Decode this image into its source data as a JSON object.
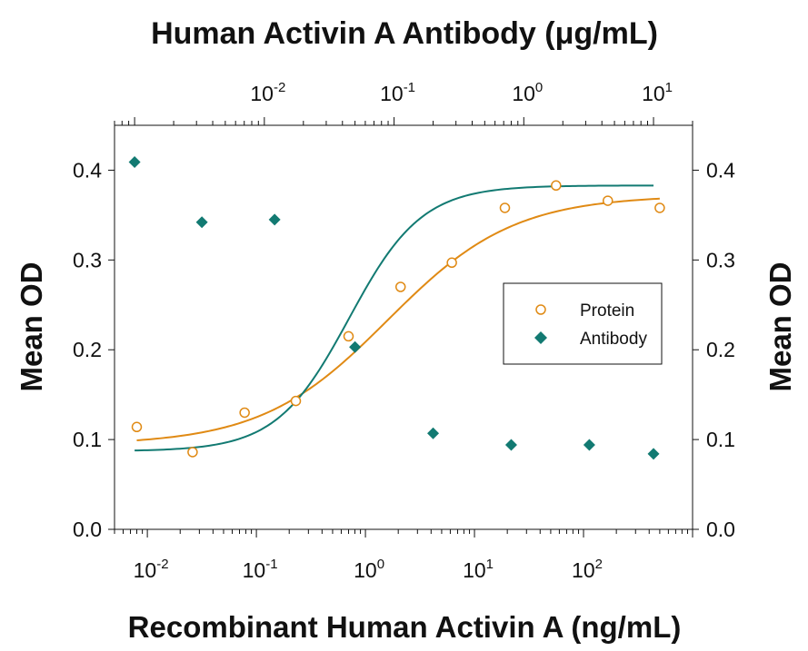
{
  "chart_data": {
    "type": "scatter",
    "title": "Human Activin A Antibody (μg/mL)",
    "xlabel": "Recombinant Human Activin A (ng/mL)",
    "ylabel": "Mean OD",
    "ylabel_right": "Mean OD",
    "x_scale": "log",
    "x_bottom_range": [
      0.005,
      1000
    ],
    "x_top_range": [
      0.0007,
      20
    ],
    "ylim": [
      0,
      0.45
    ],
    "y_ticks": [
      0.0,
      0.1,
      0.2,
      0.3,
      0.4
    ],
    "y_tick_labels": [
      "0.0",
      "0.1",
      "0.2",
      "0.3",
      "0.4"
    ],
    "x_bottom_ticks": [
      {
        "base": "10",
        "exp": "-2",
        "value": 0.01
      },
      {
        "base": "10",
        "exp": "-1",
        "value": 0.1
      },
      {
        "base": "10",
        "exp": "0",
        "value": 1
      },
      {
        "base": "10",
        "exp": "1",
        "value": 10
      },
      {
        "base": "10",
        "exp": "2",
        "value": 100
      }
    ],
    "x_top_ticks": [
      {
        "base": "10",
        "exp": "-2",
        "value": 0.01
      },
      {
        "base": "10",
        "exp": "-1",
        "value": 0.1
      },
      {
        "base": "10",
        "exp": "0",
        "value": 1
      },
      {
        "base": "10",
        "exp": "1",
        "value": 10
      }
    ],
    "legend_position": "right",
    "grid": false,
    "series": [
      {
        "name": "Protein",
        "axis": "bottom",
        "marker": "open-circle",
        "color": "#e08a14",
        "x": [
          0.008,
          0.026,
          0.078,
          0.23,
          0.7,
          2.1,
          6.2,
          19,
          56,
          167,
          500
        ],
        "y": [
          0.114,
          0.086,
          0.13,
          0.143,
          0.215,
          0.27,
          0.297,
          0.358,
          0.383,
          0.366,
          0.358
        ],
        "fit_curve": {
          "bottom": 0.094,
          "top": 0.372,
          "ec50": 1.6,
          "hill": 0.75
        }
      },
      {
        "name": "Antibody",
        "axis": "top",
        "marker": "filled-diamond",
        "color": "#127a72",
        "x": [
          0.001,
          0.0033,
          0.012,
          0.05,
          0.2,
          0.8,
          3.2,
          10
        ],
        "y": [
          0.409,
          0.342,
          0.345,
          0.203,
          0.107,
          0.094,
          0.094,
          0.084
        ],
        "fit_curve": {
          "bottom": 0.087,
          "top": 0.383,
          "ec50": 0.045,
          "hill": 1.55
        }
      }
    ]
  }
}
